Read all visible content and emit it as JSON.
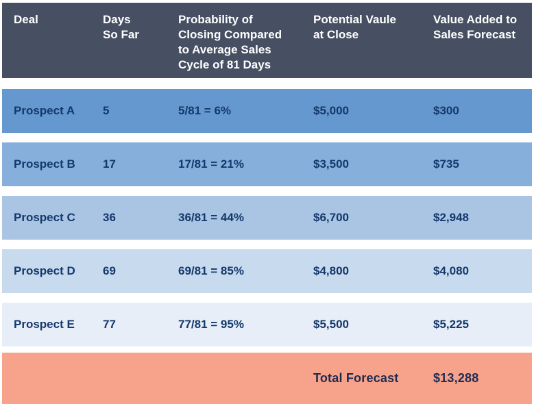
{
  "colors": {
    "page_bg": "#ffffff",
    "header_bg": "#475063",
    "header_text": "#ffffff",
    "row_text": "#14386b",
    "footer_bg": "#f7a28b",
    "footer_text": "#1e2b50"
  },
  "table": {
    "columns": [
      {
        "label": "Deal"
      },
      {
        "label": "Days\nSo Far"
      },
      {
        "label": "Probability of\nClosing Compared\nto Average Sales\nCycle of 81 Days"
      },
      {
        "label": "Potential Vaule\nat Close"
      },
      {
        "label": "Value Added to\nSales Forecast"
      }
    ],
    "rows": [
      {
        "deal": "Prospect A",
        "days": "5",
        "probability": "5/81 = 6%",
        "potential_value": "$5,000",
        "value_added": "$300",
        "bg": "#6598ce"
      },
      {
        "deal": "Prospect B",
        "days": "17",
        "probability": "17/81 = 21%",
        "potential_value": "$3,500",
        "value_added": "$735",
        "bg": "#86afdb"
      },
      {
        "deal": "Prospect C",
        "days": "36",
        "probability": "36/81 = 44%",
        "potential_value": "$6,700",
        "value_added": "$2,948",
        "bg": "#a9c5e3"
      },
      {
        "deal": "Prospect D",
        "days": "69",
        "probability": "69/81 = 85%",
        "potential_value": "$4,800",
        "value_added": "$4,080",
        "bg": "#c7daee"
      },
      {
        "deal": "Prospect E",
        "days": "77",
        "probability": "77/81 = 95%",
        "potential_value": "$5,500",
        "value_added": "$5,225",
        "bg": "#e7eef7"
      }
    ],
    "footer": {
      "label": "Total Forecast",
      "total": "$13,288"
    }
  },
  "chart_data": {
    "type": "table",
    "title": "",
    "columns": [
      "Deal",
      "Days So Far",
      "Probability of Closing Compared to Average Sales Cycle of 81 Days",
      "Potential Vaule at Close",
      "Value Added to Sales Forecast"
    ],
    "rows": [
      [
        "Prospect A",
        5,
        "5/81 = 6%",
        5000,
        300
      ],
      [
        "Prospect B",
        17,
        "17/81 = 21%",
        3500,
        735
      ],
      [
        "Prospect C",
        36,
        "36/81 = 44%",
        6700,
        2948
      ],
      [
        "Prospect D",
        69,
        "69/81 = 85%",
        4800,
        4080
      ],
      [
        "Prospect E",
        77,
        "77/81 = 95%",
        5500,
        5225
      ]
    ],
    "average_sales_cycle_days": 81,
    "footer": {
      "label": "Total Forecast",
      "value": 13288
    }
  }
}
